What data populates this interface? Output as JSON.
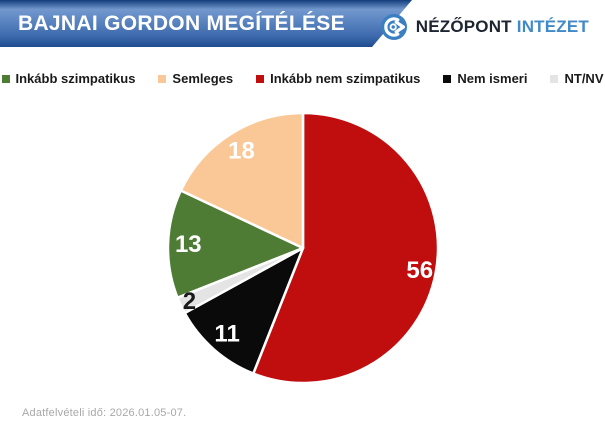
{
  "header": {
    "title": "BAJNAI GORDON MEGÍTÉLÉSE",
    "logo": {
      "name_primary": "NÉZŐPONT",
      "name_secondary": "INTÉZET",
      "icon_color": "#3a7fc1"
    }
  },
  "legend": {
    "items": [
      {
        "label": "Inkább szimpatikus",
        "color": "#4e7c34"
      },
      {
        "label": "Semleges",
        "color": "#fac896"
      },
      {
        "label": "Inkább nem szimpatikus",
        "color": "#c00d0e"
      },
      {
        "label": "Nem ismeri",
        "color": "#0a0a0a"
      },
      {
        "label": "NT/NV",
        "color": "#e4e4e4"
      }
    ]
  },
  "chart_data": {
    "type": "pie",
    "title": "BAJNAI GORDON MEGÍTÉLÉSE",
    "unit": "percent",
    "start_angle_deg": 0,
    "direction": "clockwise",
    "legend_position": "top",
    "slices": [
      {
        "label": "Inkább nem szimpatikus",
        "value": 56,
        "color": "#c00d0e",
        "label_color": "#ffffff"
      },
      {
        "label": "Nem ismeri",
        "value": 11,
        "color": "#0a0a0a",
        "label_color": "#ffffff"
      },
      {
        "label": "NT/NV",
        "value": 2,
        "color": "#e4e4e4",
        "label_color": "#1a1a1a"
      },
      {
        "label": "Inkább szimpatikus",
        "value": 13,
        "color": "#4e7c34",
        "label_color": "#ffffff"
      },
      {
        "label": "Semleges",
        "value": 18,
        "color": "#fac896",
        "label_color": "#ffffff"
      }
    ]
  },
  "footer": {
    "note": "Adatfelvételi idő: 2026.01.05-07."
  }
}
